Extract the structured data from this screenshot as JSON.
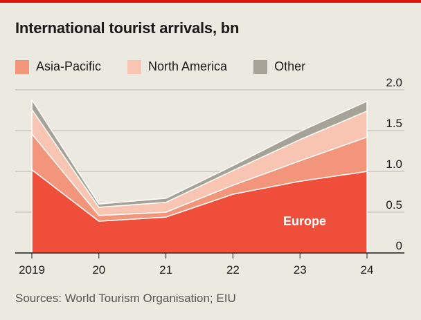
{
  "chart_data": {
    "type": "area",
    "title": "International tourist arrivals, bn",
    "x": [
      "2019",
      "20",
      "21",
      "22",
      "23",
      "24"
    ],
    "series": [
      {
        "name": "Europe",
        "values": [
          1.02,
          0.39,
          0.44,
          0.72,
          0.88,
          1.0
        ],
        "color": "#ef4e3b"
      },
      {
        "name": "Asia-Pacific",
        "values": [
          0.44,
          0.07,
          0.06,
          0.11,
          0.25,
          0.42
        ],
        "color": "#f3957b"
      },
      {
        "name": "North America",
        "values": [
          0.3,
          0.1,
          0.12,
          0.18,
          0.26,
          0.32
        ],
        "color": "#f8c5b3"
      },
      {
        "name": "Other",
        "values": [
          0.12,
          0.04,
          0.05,
          0.06,
          0.1,
          0.12
        ],
        "color": "#a6a396"
      }
    ],
    "legend": [
      "Asia-Pacific",
      "North America",
      "Other"
    ],
    "area_label": "Europe",
    "ylim": [
      0,
      2.0
    ],
    "yticks": [
      "0",
      "0.5",
      "1.0",
      "1.5",
      "2.0"
    ],
    "ytick_values": [
      0,
      0.5,
      1.0,
      1.5,
      2.0
    ],
    "y_axis_side": "right",
    "grid": true,
    "source": "Sources: World Tourism Organisation; EIU"
  }
}
